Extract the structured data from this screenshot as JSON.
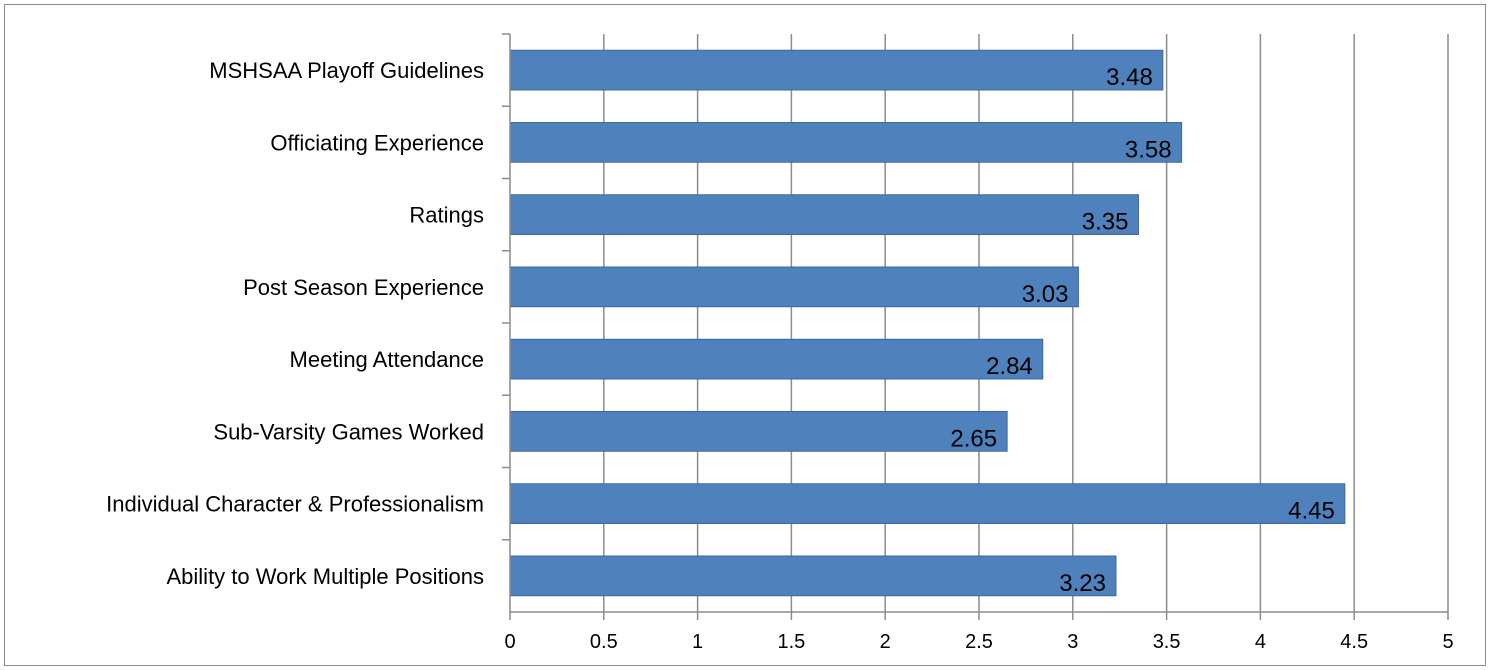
{
  "chart_data": {
    "type": "bar",
    "orientation": "horizontal",
    "title": "",
    "xlabel": "",
    "ylabel": "",
    "categories": [
      "MSHSAA Playoff Guidelines",
      "Officiating Experience",
      "Ratings",
      "Post Season Experience",
      "Meeting Attendance",
      "Sub-Varsity Games Worked",
      "Individual Character & Professionalism",
      "Ability to Work Multiple Positions"
    ],
    "values": [
      3.48,
      3.58,
      3.35,
      3.03,
      2.84,
      2.65,
      4.45,
      3.23
    ],
    "value_labels": [
      "3.48",
      "3.58",
      "3.35",
      "3.03",
      "2.84",
      "2.65",
      "4.45",
      "3.23"
    ],
    "xlim": [
      0,
      5
    ],
    "x_ticks": [
      "0",
      "0.5",
      "1",
      "1.5",
      "2",
      "2.5",
      "3",
      "3.5",
      "4",
      "4.5",
      "5"
    ],
    "grid": "vertical",
    "legend": "none",
    "colors": {
      "bar": "#4f81bd",
      "bar_border": "#3c6a9e",
      "grid": "#8c8c8c",
      "axis": "#8c8c8c"
    }
  }
}
